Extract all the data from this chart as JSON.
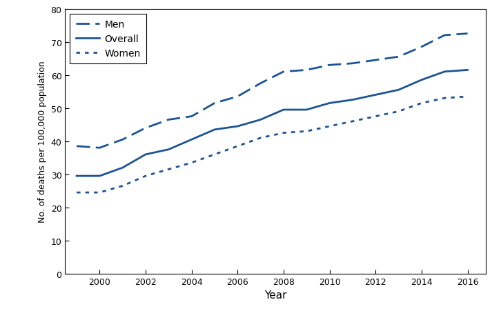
{
  "years": [
    1999,
    2000,
    2001,
    2002,
    2003,
    2004,
    2005,
    2006,
    2007,
    2008,
    2009,
    2010,
    2011,
    2012,
    2013,
    2014,
    2015,
    2016
  ],
  "men": [
    38.5,
    38.0,
    40.5,
    44.0,
    46.5,
    47.5,
    51.5,
    53.5,
    57.5,
    61.0,
    61.5,
    63.0,
    63.5,
    64.5,
    65.5,
    68.5,
    72.0,
    72.5
  ],
  "overall": [
    29.5,
    29.5,
    32.0,
    36.0,
    37.5,
    40.5,
    43.5,
    44.5,
    46.5,
    49.5,
    49.5,
    51.5,
    52.5,
    54.0,
    55.5,
    58.5,
    61.0,
    61.5
  ],
  "women": [
    24.5,
    24.5,
    26.5,
    29.5,
    31.5,
    33.5,
    36.0,
    38.5,
    41.0,
    42.5,
    43.0,
    44.5,
    46.0,
    47.5,
    49.0,
    51.5,
    53.0,
    53.5
  ],
  "line_color": "#1a5494",
  "ylim": [
    0,
    80
  ],
  "yticks": [
    0,
    10,
    20,
    30,
    40,
    50,
    60,
    70,
    80
  ],
  "xlim": [
    1998.5,
    2016.8
  ],
  "xticks": [
    2000,
    2002,
    2004,
    2006,
    2008,
    2010,
    2012,
    2014,
    2016
  ],
  "xlabel": "Year",
  "ylabel": "No. of deaths per 100,000 population",
  "legend_labels": [
    "Men",
    "Overall",
    "Women"
  ],
  "background_color": "#ffffff",
  "linewidth": 2.0,
  "tick_labelsize": 9,
  "xlabel_fontsize": 11,
  "ylabel_fontsize": 9
}
